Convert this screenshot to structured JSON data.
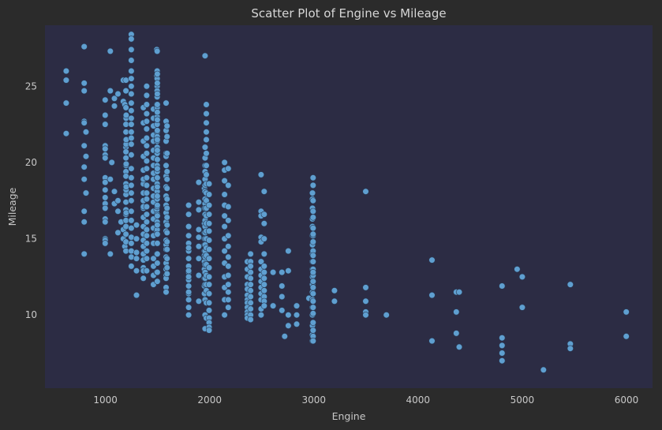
{
  "chart_data": {
    "type": "scatter",
    "title": "Scatter Plot of Engine vs Mileage",
    "xlabel": "Engine",
    "ylabel": "Mileage",
    "xlim": [
      420,
      6250
    ],
    "ylim": [
      5.2,
      29.0
    ],
    "xticks": [
      1000,
      2000,
      3000,
      4000,
      5000,
      6000
    ],
    "yticks": [
      10,
      15,
      20,
      25
    ],
    "colors": {
      "background": "#2b2b2b",
      "plot_area": "#2c2c44",
      "points": "#5f9fd0"
    },
    "series": [
      {
        "x": [
          624,
          624,
          624,
          624,
          796,
          796,
          796,
          796,
          796,
          796,
          796,
          796,
          796,
          796,
          796,
          814,
          814,
          814,
          998,
          998,
          998,
          998,
          998,
          998,
          998,
          998,
          998,
          998,
          998,
          998,
          998,
          998,
          998,
          998,
          998,
          998,
          1047,
          1047,
          1047,
          1047,
          1061,
          1086,
          1086,
          1086,
          1086,
          1120,
          1120,
          1120,
          1120,
          1150,
          1172,
          1172,
          1172,
          1172,
          1186,
          1186,
          1197,
          1197,
          1197,
          1197,
          1197,
          1197,
          1197,
          1197,
          1197,
          1197,
          1197,
          1197,
          1197,
          1197,
          1197,
          1197,
          1197,
          1197,
          1197,
          1197,
          1197,
          1197,
          1197,
          1198,
          1198,
          1198,
          1198,
          1199,
          1199,
          1199,
          1199,
          1199,
          1248,
          1248,
          1248,
          1248,
          1248,
          1248,
          1248,
          1248,
          1248,
          1248,
          1248,
          1248,
          1248,
          1248,
          1248,
          1248,
          1248,
          1248,
          1248,
          1248,
          1248,
          1248,
          1248,
          1248,
          1248,
          1248,
          1248,
          1248,
          1248,
          1298,
          1298,
          1298,
          1298,
          1298,
          1298,
          1364,
          1364,
          1364,
          1364,
          1364,
          1364,
          1364,
          1364,
          1364,
          1364,
          1364,
          1364,
          1364,
          1364,
          1364,
          1364,
          1364,
          1364,
          1364,
          1364,
          1364,
          1396,
          1396,
          1396,
          1396,
          1396,
          1396,
          1396,
          1396,
          1396,
          1396,
          1396,
          1396,
          1396,
          1396,
          1396,
          1396,
          1396,
          1396,
          1396,
          1396,
          1396,
          1396,
          1396,
          1396,
          1461,
          1461,
          1461,
          1461,
          1461,
          1461,
          1461,
          1461,
          1461,
          1461,
          1461,
          1461,
          1461,
          1461,
          1461,
          1461,
          1461,
          1461,
          1461,
          1461,
          1461,
          1461,
          1493,
          1493,
          1493,
          1493,
          1493,
          1493,
          1493,
          1493,
          1493,
          1497,
          1497,
          1497,
          1497,
          1497,
          1497,
          1497,
          1497,
          1497,
          1497,
          1497,
          1497,
          1497,
          1497,
          1497,
          1497,
          1497,
          1497,
          1497,
          1497,
          1497,
          1497,
          1497,
          1497,
          1497,
          1497,
          1498,
          1498,
          1498,
          1498,
          1498,
          1498,
          1498,
          1498,
          1498,
          1498,
          1498,
          1498,
          1498,
          1498,
          1498,
          1498,
          1498,
          1498,
          1498,
          1498,
          1498,
          1498,
          1498,
          1582,
          1582,
          1582,
          1582,
          1582,
          1582,
          1582,
          1582,
          1582,
          1582,
          1582,
          1582,
          1582,
          1582,
          1582,
          1582,
          1582,
          1582,
          1582,
          1582,
          1582,
          1582,
          1582,
          1582,
          1591,
          1591,
          1591,
          1591,
          1591,
          1591,
          1591,
          1591,
          1591,
          1591,
          1591,
          1591,
          1591,
          1591,
          1591,
          1591,
          1799,
          1799,
          1799,
          1799,
          1799,
          1799,
          1799,
          1799,
          1799,
          1799,
          1799,
          1799,
          1799,
          1799,
          1799,
          1799,
          1799,
          1799,
          1799,
          1896,
          1896,
          1896,
          1896,
          1896,
          1896,
          1896,
          1896,
          1896,
          1950,
          1950,
          1950,
          1950,
          1950,
          1950,
          1950,
          1950,
          1950,
          1950,
          1950,
          1950,
          1950,
          1956,
          1956,
          1956,
          1956,
          1956,
          1956,
          1956,
          1956,
          1956,
          1956,
          1956,
          1956,
          1956,
          1956,
          1956,
          1956,
          1956,
          1956,
          1956,
          1956,
          1956,
          1956,
          1956,
          1956,
          1956,
          1956,
          1968,
          1968,
          1968,
          1968,
          1968,
          1968,
          1968,
          1968,
          1968,
          1968,
          1968,
          1968,
          1968,
          1968,
          1968,
          1968,
          1968,
          1968,
          1968,
          1968,
          1968,
          1968,
          1968,
          1968,
          1995,
          1995,
          1995,
          1995,
          1995,
          1995,
          1995,
          1995,
          1995,
          1995,
          1995,
          1995,
          1995,
          1995,
          1995,
          1995,
          1995,
          1995,
          1995,
          2143,
          2143,
          2143,
          2143,
          2143,
          2143,
          2143,
          2143,
          2143,
          2143,
          2143,
          2143,
          2143,
          2143,
          2179,
          2179,
          2179,
          2179,
          2179,
          2179,
          2179,
          2179,
          2179,
          2179,
          2179,
          2179,
          2179,
          2362,
          2362,
          2362,
          2362,
          2362,
          2362,
          2362,
          2362,
          2362,
          2362,
          2362,
          2362,
          2393,
          2393,
          2393,
          2393,
          2393,
          2393,
          2393,
          2393,
          2393,
          2393,
          2393,
          2393,
          2393,
          2494,
          2494,
          2494,
          2494,
          2494,
          2494,
          2494,
          2494,
          2494,
          2494,
          2494,
          2494,
          2494,
          2494,
          2523,
          2523,
          2523,
          2523,
          2523,
          2523,
          2523,
          2523,
          2523,
          2523,
          2523,
          2523,
          2523,
          2609,
          2609,
          2694,
          2694,
          2694,
          2694,
          2720,
          2755,
          2755,
          2755,
          2755,
          2835,
          2835,
          2835,
          2953,
          2987,
          2987,
          2987,
          2987,
          2987,
          2987,
          2987,
          2987,
          2987,
          2987,
          2987,
          2987,
          2987,
          2987,
          2987,
          2987,
          2987,
          2987,
          2987,
          2993,
          2993,
          2993,
          2993,
          2993,
          2993,
          2993,
          2993,
          2993,
          2993,
          2993,
          2993,
          2993,
          2993,
          2993,
          2993,
          2993,
          2993,
          2993,
          2993,
          2993,
          2993,
          2993,
          2993,
          2993,
          3198,
          3198,
          3498,
          3498,
          3498,
          3498,
          3498,
          3696,
          4134,
          4134,
          4134,
          4367,
          4367,
          4367,
          4395,
          4395,
          4806,
          4806,
          4806,
          4806,
          4806,
          4951,
          5000,
          5000,
          5204,
          5461,
          5461,
          5461,
          5998,
          5998
        ],
        "y": [
          26.0,
          25.4,
          23.9,
          21.9,
          27.6,
          25.2,
          24.7,
          22.7,
          22.6,
          21.1,
          19.7,
          18.9,
          16.8,
          16.1,
          14.0,
          22.0,
          20.4,
          18.0,
          24.1,
          23.1,
          22.5,
          21.1,
          20.9,
          20.5,
          20.3,
          19.0,
          18.7,
          18.2,
          17.7,
          17.3,
          17.0,
          16.3,
          16.1,
          15.0,
          14.9,
          14.7,
          27.3,
          24.7,
          18.9,
          14.0,
          20.0,
          24.2,
          23.7,
          18.1,
          17.3,
          24.5,
          17.5,
          16.8,
          15.4,
          16.1,
          25.4,
          24.0,
          15.6,
          15.0,
          23.8,
          14.5,
          25.4,
          24.7,
          23.6,
          22.5,
          22.0,
          21.5,
          21.0,
          20.7,
          20.3,
          19.8,
          19.4,
          19.1,
          18.6,
          18.2,
          17.9,
          17.4,
          16.9,
          16.6,
          16.2,
          15.8,
          15.3,
          14.8,
          14.2,
          22.9,
          21.2,
          19.8,
          18.2,
          23.1,
          21.5,
          19.9,
          18.4,
          16.7,
          28.4,
          28.1,
          27.4,
          26.7,
          26.0,
          25.5,
          25.0,
          24.5,
          23.9,
          23.4,
          22.9,
          22.5,
          22.0,
          21.6,
          21.2,
          20.5,
          19.6,
          19.0,
          18.5,
          18.0,
          17.5,
          16.8,
          16.2,
          15.7,
          15.1,
          14.7,
          14.2,
          13.8,
          13.2,
          15.9,
          15.0,
          14.1,
          13.7,
          12.9,
          11.3,
          23.6,
          22.6,
          21.4,
          20.4,
          19.5,
          18.6,
          18.0,
          17.5,
          17.0,
          16.4,
          15.8,
          15.3,
          14.9,
          14.5,
          14.0,
          13.6,
          13.1,
          12.9,
          12.4,
          18.9,
          17.1,
          25.0,
          24.4,
          23.8,
          23.2,
          22.7,
          22.2,
          21.6,
          21.1,
          20.6,
          20.1,
          19.6,
          19.0,
          18.5,
          18.0,
          17.6,
          17.1,
          16.6,
          16.1,
          15.6,
          15.2,
          14.7,
          14.2,
          13.7,
          12.9,
          23.5,
          22.9,
          22.4,
          21.8,
          21.4,
          20.8,
          20.3,
          19.8,
          19.3,
          18.9,
          18.3,
          17.8,
          17.4,
          16.8,
          16.3,
          15.7,
          15.2,
          14.7,
          13.7,
          13.2,
          12.6,
          12.0,
          27.4,
          25.7,
          23.8,
          20.6,
          18.3,
          16.9,
          15.5,
          14.0,
          12.8,
          27.3,
          26.0,
          25.5,
          25.0,
          24.7,
          24.3,
          23.6,
          23.0,
          22.8,
          22.5,
          22.0,
          21.7,
          21.4,
          21.0,
          20.6,
          20.2,
          19.8,
          19.4,
          19.0,
          18.6,
          18.1,
          17.6,
          17.1,
          16.6,
          16.1,
          15.6,
          25.8,
          25.2,
          24.5,
          23.8,
          23.3,
          22.8,
          22.1,
          21.5,
          20.8,
          20.2,
          19.6,
          19.0,
          18.4,
          17.8,
          17.2,
          16.5,
          15.9,
          15.3,
          14.7,
          14.0,
          13.4,
          12.8,
          12.2,
          23.9,
          22.7,
          22.1,
          21.4,
          20.6,
          20.4,
          19.8,
          19.1,
          18.4,
          17.8,
          17.2,
          16.7,
          16.1,
          15.5,
          14.9,
          14.6,
          14.3,
          13.8,
          13.4,
          13.0,
          12.6,
          12.4,
          11.8,
          11.5,
          22.4,
          21.7,
          20.6,
          19.4,
          18.9,
          18.3,
          17.6,
          17.0,
          16.4,
          15.9,
          15.4,
          14.8,
          14.3,
          13.7,
          13.1,
          12.7,
          17.2,
          16.6,
          15.8,
          15.2,
          14.7,
          14.2,
          13.7,
          13.2,
          12.8,
          12.3,
          11.9,
          11.4,
          11.0,
          10.5,
          10.0,
          14.4,
          12.9,
          12.5,
          11.5,
          18.7,
          17.4,
          16.9,
          15.6,
          15.1,
          14.5,
          13.7,
          12.6,
          10.9,
          18.3,
          17.0,
          16.0,
          15.4,
          15.0,
          14.6,
          14.2,
          13.9,
          13.5,
          13.0,
          12.4,
          11.9,
          11.4,
          27.0,
          21.0,
          20.3,
          19.8,
          19.4,
          18.9,
          18.5,
          18.1,
          17.6,
          17.3,
          17.0,
          16.6,
          16.2,
          15.8,
          15.4,
          15.0,
          14.6,
          14.2,
          13.8,
          13.3,
          12.8,
          12.4,
          12.0,
          11.0,
          10.0,
          9.1,
          23.8,
          23.2,
          22.6,
          22.0,
          21.5,
          20.6,
          19.8,
          19.2,
          18.6,
          18.0,
          17.5,
          17.0,
          16.5,
          16.0,
          15.5,
          15.0,
          14.4,
          13.9,
          13.3,
          12.6,
          12.0,
          11.6,
          10.8,
          9.8,
          18.6,
          17.9,
          17.2,
          16.6,
          16.0,
          15.5,
          14.9,
          14.3,
          13.7,
          13.1,
          12.5,
          12.0,
          11.4,
          10.8,
          10.3,
          9.8,
          9.5,
          9.2,
          9.0,
          20.0,
          19.5,
          18.8,
          17.9,
          17.2,
          16.5,
          15.8,
          15.0,
          14.2,
          13.4,
          12.5,
          11.8,
          11.0,
          10.0,
          19.6,
          18.5,
          17.1,
          16.2,
          15.2,
          14.5,
          13.8,
          13.2,
          12.6,
          12.0,
          11.5,
          11.0,
          10.5,
          13.5,
          13.0,
          12.5,
          12.0,
          11.7,
          11.3,
          11.0,
          10.8,
          10.5,
          10.2,
          10.0,
          9.8,
          14.0,
          13.5,
          13.2,
          12.8,
          12.4,
          12.0,
          11.6,
          11.2,
          10.8,
          10.4,
          10.0,
          9.7,
          13.2,
          19.2,
          16.8,
          16.5,
          15.1,
          14.8,
          13.5,
          13.0,
          12.6,
          12.2,
          11.8,
          11.4,
          11.0,
          10.4,
          10.0,
          18.1,
          16.6,
          16.0,
          15.0,
          14.0,
          13.2,
          12.8,
          12.4,
          12.0,
          11.6,
          11.2,
          10.9,
          10.6,
          12.8,
          10.6,
          12.8,
          11.9,
          11.2,
          10.3,
          8.6,
          14.2,
          12.9,
          10.0,
          9.3,
          10.6,
          10.0,
          9.4,
          11.1,
          18.0,
          17.6,
          17.0,
          16.3,
          15.8,
          15.2,
          14.6,
          14.0,
          13.5,
          13.0,
          12.5,
          12.0,
          11.5,
          11.0,
          10.5,
          10.0,
          9.3,
          8.7,
          8.3,
          19.0,
          18.5,
          17.5,
          16.8,
          16.4,
          15.7,
          15.2,
          14.8,
          14.2,
          13.9,
          13.5,
          13.0,
          12.6,
          12.2,
          11.8,
          11.4,
          10.9,
          10.5,
          10.1,
          9.5,
          9.0,
          8.6,
          8.3,
          15.3,
          12.8,
          11.6,
          10.9,
          18.1,
          11.8,
          10.9,
          10.2,
          10.0,
          10.0,
          13.6,
          11.3,
          8.3,
          11.5,
          10.2,
          8.8,
          11.5,
          7.9,
          11.9,
          8.5,
          8.0,
          7.5,
          7.0,
          13.0,
          12.5,
          10.5,
          6.4,
          12.0,
          8.1,
          7.8,
          10.2,
          8.6
        ]
      }
    ]
  }
}
